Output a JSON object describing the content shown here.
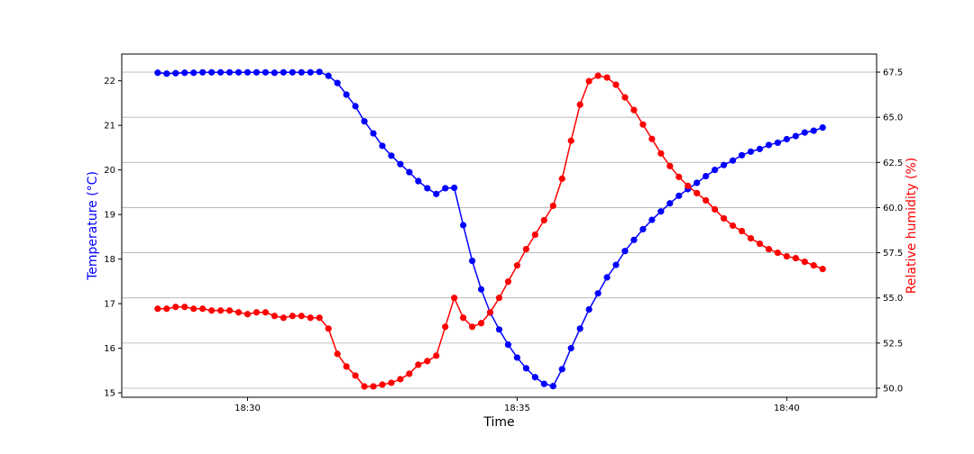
{
  "chart_data": {
    "type": "line",
    "title": "",
    "xlabel": "Time",
    "y1label": "Temperature (°C)",
    "y2label": "Relative humidity (%)",
    "x_start": "18:28:20",
    "x_step_seconds": 10,
    "xlim": [
      "18:27:40",
      "18:41:40"
    ],
    "y1lim": [
      14.9,
      22.6
    ],
    "y2lim": [
      49.5,
      68.5
    ],
    "x_ticks": [
      {
        "time": "18:30:00",
        "label": "18:30"
      },
      {
        "time": "18:35:00",
        "label": "18:35"
      },
      {
        "time": "18:40:00",
        "label": "18:40"
      }
    ],
    "y1_ticks": [
      15,
      16,
      17,
      18,
      19,
      20,
      21,
      22
    ],
    "y2_ticks": [
      {
        "value": 50,
        "label": "50.0"
      },
      {
        "value": 52.5,
        "label": "52.5"
      },
      {
        "value": 55,
        "label": "55.0"
      },
      {
        "value": 57.5,
        "label": "57.5"
      },
      {
        "value": 60,
        "label": "60.0"
      },
      {
        "value": 62.5,
        "label": "62.5"
      },
      {
        "value": 65,
        "label": "65.0"
      },
      {
        "value": 67.5,
        "label": "67.5"
      }
    ],
    "grid": "horizontal, right axis",
    "series": [
      {
        "axis": "left",
        "color": "#0000ff",
        "values": [
          22.18,
          22.16,
          22.17,
          22.18,
          22.18,
          22.19,
          22.19,
          22.19,
          22.19,
          22.19,
          22.19,
          22.19,
          22.19,
          22.18,
          22.19,
          22.19,
          22.19,
          22.19,
          22.2,
          22.11,
          21.95,
          21.69,
          21.43,
          21.09,
          20.82,
          20.54,
          20.32,
          20.13,
          19.95,
          19.75,
          19.59,
          19.46,
          19.59,
          19.6,
          18.76,
          17.96,
          17.32,
          16.8,
          16.42,
          16.08,
          15.79,
          15.55,
          15.35,
          15.2,
          15.15,
          15.53,
          16.0,
          16.44,
          16.87,
          17.23,
          17.59,
          17.87,
          18.18,
          18.43,
          18.67,
          18.88,
          19.07,
          19.25,
          19.42,
          19.57,
          19.71,
          19.86,
          20.0,
          20.11,
          20.21,
          20.33,
          20.41,
          20.47,
          20.56,
          20.61,
          20.69,
          20.76,
          20.84,
          20.88,
          20.95
        ]
      },
      {
        "axis": "right",
        "color": "#ff0000",
        "values": [
          54.4,
          54.4,
          54.5,
          54.5,
          54.4,
          54.4,
          54.3,
          54.3,
          54.3,
          54.2,
          54.1,
          54.2,
          54.2,
          54.0,
          53.9,
          54.0,
          54.0,
          53.9,
          53.9,
          53.3,
          51.9,
          51.2,
          50.7,
          50.1,
          50.1,
          50.2,
          50.3,
          50.5,
          50.8,
          51.3,
          51.5,
          51.8,
          53.4,
          55.0,
          53.9,
          53.4,
          53.6,
          54.2,
          55.0,
          55.9,
          56.8,
          57.7,
          58.5,
          59.3,
          60.1,
          61.6,
          63.7,
          65.7,
          67.0,
          67.3,
          67.2,
          66.8,
          66.1,
          65.4,
          64.6,
          63.8,
          63.0,
          62.3,
          61.7,
          61.2,
          60.8,
          60.4,
          59.9,
          59.4,
          59.0,
          58.7,
          58.3,
          58.0,
          57.7,
          57.5,
          57.3,
          57.2,
          57.0,
          56.8,
          56.6
        ]
      }
    ]
  }
}
